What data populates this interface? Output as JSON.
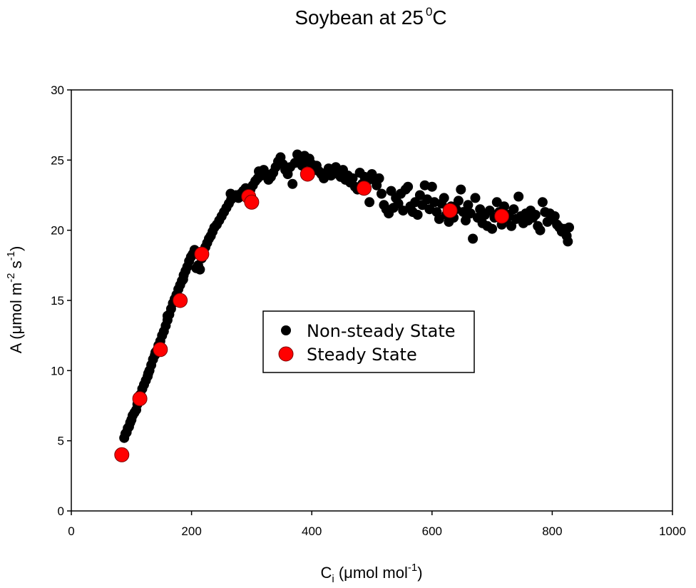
{
  "chart_data": {
    "type": "scatter",
    "title": "Soybean at 25",
    "title_superscript": "0",
    "title_suffix": "C",
    "xlabel": {
      "base": "C",
      "subscript": "i",
      "rest": " (μmol mol",
      "superscript": "-1",
      "close": ")"
    },
    "ylabel": {
      "prefix": "A (μmol m",
      "sup1": "-2",
      "mid": " s",
      "sup2": "-1",
      "close": ")"
    },
    "xlim": [
      0,
      1000
    ],
    "ylim": [
      0,
      30
    ],
    "xticks": [
      0,
      200,
      400,
      600,
      800,
      1000
    ],
    "yticks": [
      0,
      5,
      10,
      15,
      20,
      25,
      30
    ],
    "grid": false,
    "legend_position": "center",
    "series": [
      {
        "name": "Non-steady State",
        "color": "#000000",
        "points": [
          [
            88,
            5.2
          ],
          [
            90,
            5.5
          ],
          [
            92,
            5.6
          ],
          [
            94,
            5.9
          ],
          [
            96,
            6.0
          ],
          [
            98,
            6.3
          ],
          [
            100,
            6.5
          ],
          [
            102,
            6.8
          ],
          [
            105,
            7.0
          ],
          [
            108,
            7.2
          ],
          [
            110,
            7.6
          ],
          [
            112,
            7.9
          ],
          [
            115,
            8.3
          ],
          [
            118,
            8.7
          ],
          [
            121,
            9.0
          ],
          [
            124,
            9.3
          ],
          [
            127,
            9.6
          ],
          [
            130,
            10.0
          ],
          [
            133,
            10.4
          ],
          [
            136,
            10.8
          ],
          [
            139,
            11.1
          ],
          [
            142,
            11.4
          ],
          [
            145,
            11.8
          ],
          [
            148,
            12.1
          ],
          [
            151,
            12.5
          ],
          [
            154,
            12.8
          ],
          [
            157,
            13.2
          ],
          [
            160,
            13.6
          ],
          [
            163,
            14.0
          ],
          [
            166,
            14.4
          ],
          [
            169,
            14.8
          ],
          [
            172,
            15.1
          ],
          [
            175,
            15.4
          ],
          [
            178,
            15.8
          ],
          [
            181,
            16.1
          ],
          [
            184,
            16.4
          ],
          [
            187,
            16.8
          ],
          [
            190,
            17.1
          ],
          [
            193,
            17.4
          ],
          [
            196,
            17.8
          ],
          [
            199,
            18.1
          ],
          [
            202,
            18.3
          ],
          [
            205,
            18.6
          ],
          [
            208,
            17.3
          ],
          [
            211,
            17.5
          ],
          [
            214,
            17.2
          ],
          [
            217,
            18.0
          ],
          [
            220,
            18.4
          ],
          [
            223,
            18.8
          ],
          [
            226,
            19.1
          ],
          [
            229,
            19.4
          ],
          [
            232,
            19.6
          ],
          [
            235,
            19.9
          ],
          [
            238,
            20.2
          ],
          [
            242,
            20.4
          ],
          [
            246,
            20.7
          ],
          [
            250,
            21.0
          ],
          [
            254,
            21.3
          ],
          [
            258,
            21.6
          ],
          [
            262,
            21.9
          ],
          [
            266,
            22.2
          ],
          [
            270,
            22.4
          ],
          [
            265,
            22.6
          ],
          [
            274,
            22.5
          ],
          [
            278,
            22.3
          ],
          [
            282,
            22.6
          ],
          [
            286,
            22.8
          ],
          [
            290,
            23.0
          ],
          [
            294,
            22.7
          ],
          [
            298,
            22.9
          ],
          [
            302,
            23.2
          ],
          [
            306,
            23.5
          ],
          [
            310,
            23.7
          ],
          [
            312,
            24.2
          ],
          [
            316,
            23.9
          ],
          [
            320,
            24.3
          ],
          [
            324,
            24.0
          ],
          [
            328,
            23.6
          ],
          [
            332,
            23.8
          ],
          [
            336,
            24.1
          ],
          [
            340,
            24.5
          ],
          [
            344,
            24.9
          ],
          [
            348,
            25.2
          ],
          [
            352,
            24.7
          ],
          [
            356,
            24.3
          ],
          [
            360,
            24.0
          ],
          [
            364,
            24.5
          ],
          [
            368,
            23.3
          ],
          [
            372,
            24.8
          ],
          [
            376,
            25.4
          ],
          [
            380,
            25.0
          ],
          [
            384,
            24.6
          ],
          [
            388,
            25.3
          ],
          [
            392,
            24.9
          ],
          [
            396,
            25.1
          ],
          [
            400,
            24.7
          ],
          [
            404,
            24.3
          ],
          [
            408,
            24.6
          ],
          [
            412,
            24.2
          ],
          [
            416,
            24.0
          ],
          [
            420,
            23.7
          ],
          [
            424,
            24.1
          ],
          [
            428,
            24.4
          ],
          [
            432,
            23.9
          ],
          [
            436,
            24.2
          ],
          [
            440,
            24.5
          ],
          [
            444,
            24.0
          ],
          [
            448,
            23.8
          ],
          [
            452,
            24.3
          ],
          [
            456,
            23.6
          ],
          [
            460,
            23.9
          ],
          [
            464,
            23.4
          ],
          [
            468,
            23.7
          ],
          [
            472,
            23.1
          ],
          [
            476,
            22.9
          ],
          [
            480,
            24.1
          ],
          [
            484,
            23.3
          ],
          [
            488,
            23.8
          ],
          [
            492,
            23.5
          ],
          [
            496,
            22.0
          ],
          [
            500,
            24.0
          ],
          [
            504,
            23.6
          ],
          [
            508,
            23.2
          ],
          [
            512,
            23.7
          ],
          [
            516,
            22.6
          ],
          [
            520,
            21.8
          ],
          [
            524,
            21.5
          ],
          [
            528,
            21.2
          ],
          [
            532,
            22.8
          ],
          [
            536,
            21.6
          ],
          [
            540,
            22.3
          ],
          [
            544,
            21.9
          ],
          [
            548,
            22.6
          ],
          [
            552,
            21.4
          ],
          [
            556,
            22.9
          ],
          [
            560,
            23.1
          ],
          [
            564,
            21.7
          ],
          [
            568,
            21.3
          ],
          [
            572,
            22.0
          ],
          [
            576,
            21.1
          ],
          [
            580,
            22.5
          ],
          [
            584,
            21.8
          ],
          [
            588,
            23.2
          ],
          [
            592,
            22.2
          ],
          [
            596,
            21.5
          ],
          [
            600,
            23.1
          ],
          [
            604,
            22.0
          ],
          [
            608,
            21.3
          ],
          [
            612,
            20.8
          ],
          [
            616,
            21.9
          ],
          [
            620,
            22.3
          ],
          [
            624,
            21.1
          ],
          [
            628,
            20.6
          ],
          [
            632,
            21.7
          ],
          [
            636,
            20.9
          ],
          [
            640,
            21.5
          ],
          [
            644,
            22.1
          ],
          [
            648,
            22.9
          ],
          [
            652,
            21.3
          ],
          [
            656,
            20.7
          ],
          [
            660,
            21.8
          ],
          [
            664,
            21.2
          ],
          [
            668,
            19.4
          ],
          [
            672,
            22.3
          ],
          [
            676,
            20.9
          ],
          [
            680,
            21.5
          ],
          [
            684,
            20.5
          ],
          [
            688,
            21.1
          ],
          [
            692,
            20.3
          ],
          [
            696,
            21.4
          ],
          [
            700,
            20.1
          ],
          [
            704,
            20.9
          ],
          [
            708,
            22.0
          ],
          [
            712,
            21.3
          ],
          [
            716,
            20.4
          ],
          [
            720,
            21.7
          ],
          [
            724,
            20.8
          ],
          [
            728,
            21.1
          ],
          [
            732,
            20.3
          ],
          [
            736,
            21.5
          ],
          [
            740,
            20.8
          ],
          [
            744,
            22.4
          ],
          [
            748,
            21.0
          ],
          [
            752,
            20.5
          ],
          [
            756,
            21.2
          ],
          [
            760,
            20.7
          ],
          [
            764,
            21.4
          ],
          [
            768,
            20.9
          ],
          [
            772,
            21.1
          ],
          [
            776,
            20.3
          ],
          [
            780,
            20.0
          ],
          [
            784,
            22.0
          ],
          [
            788,
            21.3
          ],
          [
            792,
            20.6
          ],
          [
            796,
            21.2
          ],
          [
            800,
            20.8
          ],
          [
            804,
            21.0
          ],
          [
            808,
            20.4
          ],
          [
            812,
            20.2
          ],
          [
            816,
            19.9
          ],
          [
            820,
            20.1
          ],
          [
            824,
            19.6
          ],
          [
            826,
            19.2
          ],
          [
            828,
            20.2
          ],
          [
            174,
            15.0
          ],
          [
            160,
            13.9
          ],
          [
            140,
            11.3
          ],
          [
            128,
            9.8
          ],
          [
            113,
            8.2
          ],
          [
            186,
            16.5
          ]
        ]
      },
      {
        "name": "Steady State",
        "color": "#ff0000",
        "points": [
          [
            84,
            4.0
          ],
          [
            114,
            8.0
          ],
          [
            148,
            11.5
          ],
          [
            181,
            15.0
          ],
          [
            217,
            18.3
          ],
          [
            295,
            22.4
          ],
          [
            300,
            22.0
          ],
          [
            393,
            24.0
          ],
          [
            487,
            23.0
          ],
          [
            630,
            21.4
          ],
          [
            716,
            21.0
          ]
        ]
      }
    ]
  }
}
